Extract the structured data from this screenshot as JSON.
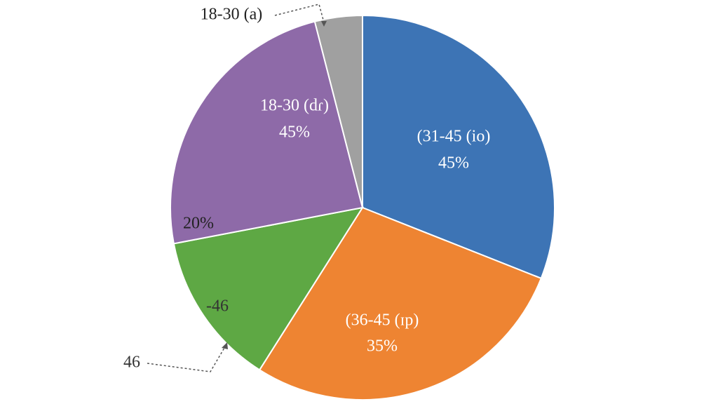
{
  "chart_data": {
    "type": "pie",
    "values": [
      31,
      28,
      13,
      24,
      4
    ],
    "colors": [
      "#3d74b5",
      "#ee8432",
      "#5ea844",
      "#8e6aa8",
      "#a0a0a0"
    ],
    "annotations": [
      "(31-45 (io)",
      "45%",
      "(36-45 (ɪp)",
      "35%",
      "18-30 (dɾ)",
      "45%",
      "20%",
      "-46",
      "46",
      "18-30 (a)"
    ]
  }
}
